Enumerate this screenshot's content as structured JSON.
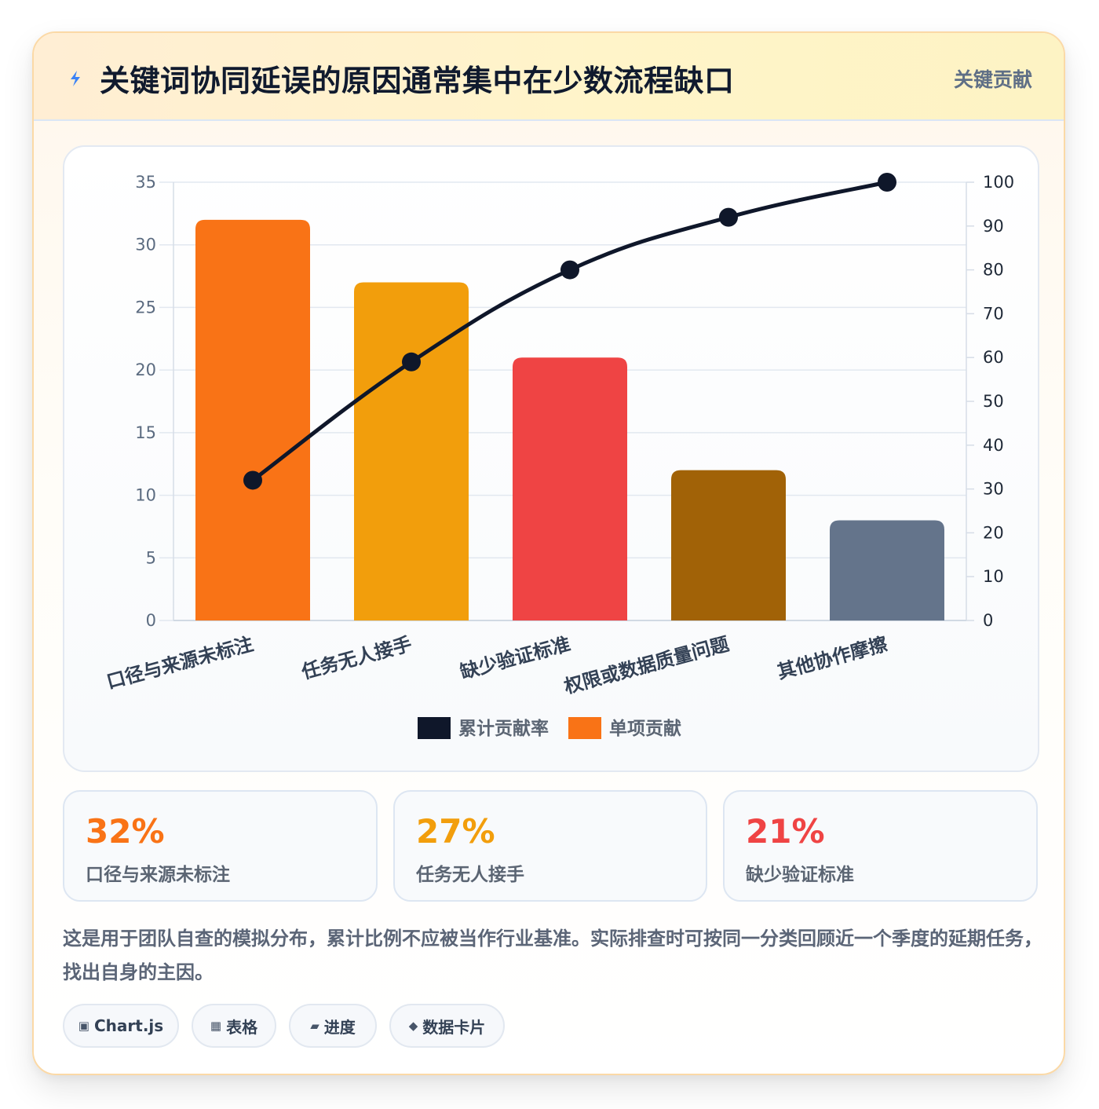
{
  "header": {
    "icon": "lightning-bolt-icon",
    "title": "关键词协同延误的原因通常集中在少数流程缺口",
    "tag": "关键贡献"
  },
  "chart_data": {
    "type": "bar",
    "categories": [
      "口径与来源未标注",
      "任务无人接手",
      "缺少验证标准",
      "权限或数据质量问题",
      "其他协作摩擦"
    ],
    "series": [
      {
        "name": "单项贡献",
        "type": "bar",
        "axis": "left",
        "values": [
          32,
          27,
          21,
          12,
          8
        ],
        "colors": [
          "#f97316",
          "#f29e0c",
          "#ef4444",
          "#a16207",
          "#64748b"
        ]
      },
      {
        "name": "累计贡献率",
        "type": "line",
        "axis": "right",
        "values": [
          32,
          59,
          80,
          92,
          100
        ],
        "color": "#0f172a"
      }
    ],
    "ylim_left": [
      0,
      35
    ],
    "yticks_left": [
      0,
      5,
      10,
      15,
      20,
      25,
      30,
      35
    ],
    "ylim_right": [
      0,
      100
    ],
    "yticks_right": [
      0,
      10,
      20,
      30,
      40,
      50,
      60,
      70,
      80,
      90,
      100
    ],
    "grid": true,
    "legend": {
      "position": "bottom",
      "items": [
        {
          "label": "累计贡献率",
          "color": "#0f172a"
        },
        {
          "label": "单项贡献",
          "color": "#f97316"
        }
      ]
    }
  },
  "stats": [
    {
      "value": "32%",
      "label": "口径与来源未标注",
      "color": "#f97316"
    },
    {
      "value": "27%",
      "label": "任务无人接手",
      "color": "#f29e0c"
    },
    {
      "value": "21%",
      "label": "缺少验证标准",
      "color": "#ef4444"
    }
  ],
  "note": "这是用于团队自查的模拟分布，累计比例不应被当作行业基准。实际排查时可按同一分类回顾近一个季度的延期任务，找出自身的主因。",
  "tags": [
    {
      "icon": "chart-icon",
      "glyph": "▣",
      "label": "Chart.js"
    },
    {
      "icon": "table-icon",
      "glyph": "▦",
      "label": "表格"
    },
    {
      "icon": "progress-icon",
      "glyph": "▰",
      "label": "进度"
    },
    {
      "icon": "diamond-icon",
      "glyph": "◆",
      "label": "数据卡片"
    }
  ]
}
